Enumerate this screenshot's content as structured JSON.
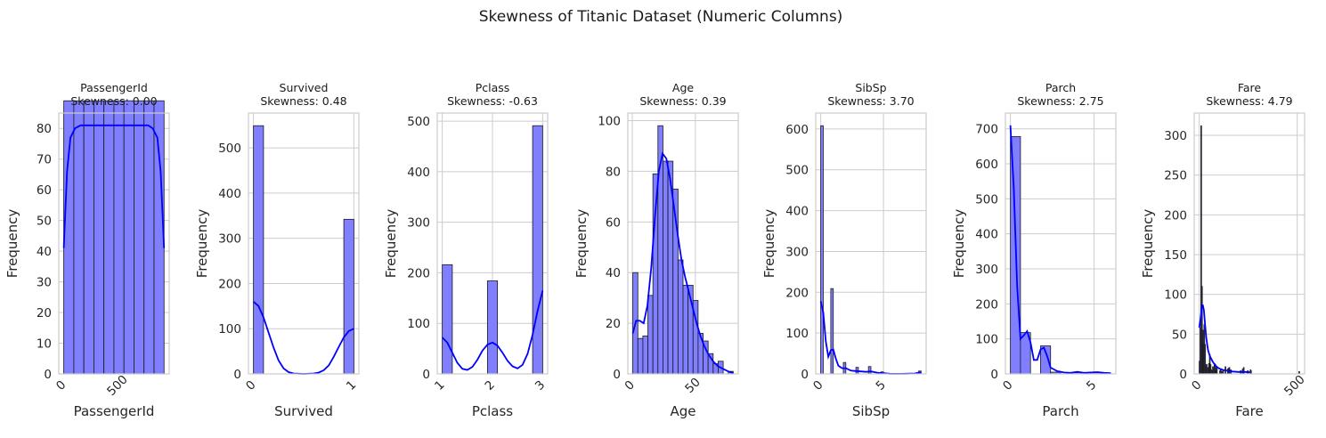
{
  "figure": {
    "suptitle": "Skewness of Titanic Dataset (Numeric Columns)",
    "colors": {
      "bar_fill": "#7f7fff",
      "bar_edge": "#1a1a1a",
      "kde": "#0000ff",
      "grid": "#cccccc",
      "spine": "#cccccc"
    }
  },
  "chart_data": [
    {
      "type": "histogram",
      "title": "PassengerId",
      "subtitle": "Skewness: 0.00",
      "xlabel": "PassengerId",
      "ylabel": "Frequency",
      "xlim": [
        -43.5,
        936.5
      ],
      "ylim": [
        0,
        85
      ],
      "xticks": [
        0,
        500
      ],
      "yticks": [
        0,
        10,
        20,
        30,
        40,
        50,
        60,
        70,
        80
      ],
      "bins": [
        [
          1,
          90,
          89
        ],
        [
          90,
          179,
          89
        ],
        [
          179,
          268,
          89
        ],
        [
          268,
          357,
          89
        ],
        [
          357,
          446,
          89
        ],
        [
          446,
          535,
          89
        ],
        [
          535,
          624,
          89
        ],
        [
          624,
          713,
          89
        ],
        [
          713,
          802,
          89
        ],
        [
          802,
          891,
          89
        ]
      ],
      "kde": [
        [
          1,
          41
        ],
        [
          30,
          66
        ],
        [
          60,
          77
        ],
        [
          100,
          80
        ],
        [
          150,
          81
        ],
        [
          300,
          81
        ],
        [
          450,
          81
        ],
        [
          600,
          81
        ],
        [
          750,
          81
        ],
        [
          790,
          80
        ],
        [
          831,
          77
        ],
        [
          861,
          66
        ],
        [
          891,
          41
        ]
      ]
    },
    {
      "type": "histogram",
      "title": "Survived",
      "subtitle": "Skewness: 0.48",
      "xlabel": "Survived",
      "ylabel": "Frequency",
      "xlim": [
        -0.05,
        1.05
      ],
      "ylim": [
        0,
        577
      ],
      "xticks": [
        0,
        1
      ],
      "yticks": [
        0,
        100,
        200,
        300,
        400,
        500
      ],
      "bins": [
        [
          0,
          0.1,
          549
        ],
        [
          0.9,
          1.0,
          342
        ]
      ],
      "kde": [
        [
          0,
          160
        ],
        [
          0.05,
          150
        ],
        [
          0.1,
          125
        ],
        [
          0.15,
          92
        ],
        [
          0.2,
          58
        ],
        [
          0.25,
          30
        ],
        [
          0.3,
          12
        ],
        [
          0.35,
          4
        ],
        [
          0.4,
          1
        ],
        [
          0.5,
          0
        ],
        [
          0.6,
          1
        ],
        [
          0.65,
          3
        ],
        [
          0.7,
          8
        ],
        [
          0.75,
          19
        ],
        [
          0.8,
          38
        ],
        [
          0.85,
          60
        ],
        [
          0.9,
          81
        ],
        [
          0.95,
          95
        ],
        [
          1.0,
          100
        ]
      ]
    },
    {
      "type": "histogram",
      "title": "Pclass",
      "subtitle": "Skewness: -0.63",
      "xlabel": "Pclass",
      "ylabel": "Frequency",
      "xlim": [
        0.9,
        3.1
      ],
      "ylim": [
        0,
        516
      ],
      "xticks": [
        1,
        2,
        3
      ],
      "yticks": [
        0,
        100,
        200,
        300,
        400,
        500
      ],
      "bins": [
        [
          1,
          1.2,
          216
        ],
        [
          1.9,
          2.1,
          184
        ],
        [
          2.8,
          3.0,
          491
        ]
      ],
      "kde": [
        [
          1,
          72
        ],
        [
          1.1,
          62
        ],
        [
          1.2,
          42
        ],
        [
          1.3,
          22
        ],
        [
          1.4,
          10
        ],
        [
          1.5,
          8
        ],
        [
          1.6,
          14
        ],
        [
          1.7,
          28
        ],
        [
          1.8,
          46
        ],
        [
          1.9,
          58
        ],
        [
          2.0,
          62
        ],
        [
          2.1,
          56
        ],
        [
          2.2,
          42
        ],
        [
          2.3,
          26
        ],
        [
          2.4,
          15
        ],
        [
          2.5,
          11
        ],
        [
          2.6,
          18
        ],
        [
          2.7,
          40
        ],
        [
          2.8,
          78
        ],
        [
          2.9,
          125
        ],
        [
          3.0,
          165
        ]
      ]
    },
    {
      "type": "histogram",
      "title": "Age",
      "subtitle": "Skewness: 0.39",
      "xlabel": "Age",
      "ylabel": "Frequency",
      "xlim": [
        -3.55,
        83.97
      ],
      "ylim": [
        0,
        103
      ],
      "xticks": [
        0,
        50
      ],
      "yticks": [
        0,
        20,
        40,
        60,
        80,
        100
      ],
      "bins": [
        [
          0.42,
          4.4,
          40
        ],
        [
          4.4,
          8.38,
          14
        ],
        [
          8.38,
          12.36,
          15
        ],
        [
          12.36,
          16.33,
          31
        ],
        [
          16.33,
          20.31,
          79
        ],
        [
          20.31,
          24.29,
          98
        ],
        [
          24.29,
          28.27,
          84
        ],
        [
          28.27,
          32.25,
          84
        ],
        [
          32.25,
          36.23,
          73
        ],
        [
          36.23,
          40.21,
          45
        ],
        [
          40.21,
          44.19,
          35
        ],
        [
          44.19,
          48.16,
          35
        ],
        [
          48.16,
          52.14,
          29
        ],
        [
          52.14,
          56.12,
          16
        ],
        [
          56.12,
          60.1,
          13
        ],
        [
          60.1,
          64.08,
          8
        ],
        [
          64.08,
          68.06,
          4
        ],
        [
          68.06,
          72.04,
          5
        ],
        [
          72.04,
          76.02,
          0
        ],
        [
          76.02,
          80.0,
          1
        ]
      ],
      "kde": [
        [
          0.42,
          16
        ],
        [
          3,
          21
        ],
        [
          6,
          21
        ],
        [
          9,
          20
        ],
        [
          12,
          27
        ],
        [
          15,
          42
        ],
        [
          18,
          62
        ],
        [
          21,
          80
        ],
        [
          24,
          87
        ],
        [
          27,
          85
        ],
        [
          30,
          77
        ],
        [
          33,
          66
        ],
        [
          36,
          55
        ],
        [
          39,
          45
        ],
        [
          42,
          38
        ],
        [
          45,
          32
        ],
        [
          48,
          26
        ],
        [
          51,
          20
        ],
        [
          54,
          15
        ],
        [
          57,
          11
        ],
        [
          60,
          8
        ],
        [
          64,
          5
        ],
        [
          68,
          3
        ],
        [
          72,
          2
        ],
        [
          76,
          1
        ],
        [
          80,
          0.3
        ]
      ]
    },
    {
      "type": "histogram",
      "title": "SibSp",
      "subtitle": "Skewness: 3.70",
      "xlabel": "SibSp",
      "ylabel": "Frequency",
      "xlim": [
        -0.4,
        8.4
      ],
      "ylim": [
        0,
        639
      ],
      "xticks": [
        0,
        5
      ],
      "yticks": [
        0,
        100,
        200,
        300,
        400,
        500,
        600
      ],
      "bins": [
        [
          0,
          0.2,
          608
        ],
        [
          0.8,
          1.0,
          209
        ],
        [
          1.8,
          2.0,
          28
        ],
        [
          2.8,
          3.0,
          16
        ],
        [
          3.8,
          4.0,
          18
        ],
        [
          4.8,
          5.0,
          5
        ],
        [
          7.8,
          8.0,
          7
        ]
      ],
      "kde": [
        [
          0,
          178
        ],
        [
          0.2,
          150
        ],
        [
          0.4,
          80
        ],
        [
          0.6,
          42
        ],
        [
          0.8,
          58
        ],
        [
          1.0,
          60
        ],
        [
          1.2,
          38
        ],
        [
          1.4,
          20
        ],
        [
          1.7,
          14
        ],
        [
          2.0,
          14
        ],
        [
          2.4,
          8
        ],
        [
          2.8,
          7
        ],
        [
          3.2,
          6
        ],
        [
          3.6,
          5
        ],
        [
          4.0,
          6
        ],
        [
          4.5,
          3
        ],
        [
          5.0,
          2
        ],
        [
          5.5,
          0.5
        ],
        [
          6.5,
          0.2
        ],
        [
          7.5,
          1
        ],
        [
          7.8,
          3
        ],
        [
          8.0,
          4
        ]
      ]
    },
    {
      "type": "histogram",
      "title": "Parch",
      "subtitle": "Skewness: 2.75",
      "xlabel": "Parch",
      "ylabel": "Frequency",
      "xlim": [
        -0.3,
        6.3
      ],
      "ylim": [
        0,
        745
      ],
      "xticks": [
        0,
        5
      ],
      "yticks": [
        0,
        100,
        200,
        300,
        400,
        500,
        600,
        700
      ],
      "bins": [
        [
          0,
          0.6,
          678
        ],
        [
          0.6,
          1.2,
          118
        ],
        [
          1.8,
          2.4,
          80
        ],
        [
          2.4,
          3.0,
          5
        ],
        [
          3.6,
          4.2,
          4
        ],
        [
          4.8,
          5.4,
          5
        ],
        [
          5.4,
          6.0,
          1
        ]
      ],
      "kde": [
        [
          0,
          710
        ],
        [
          0.2,
          530
        ],
        [
          0.4,
          250
        ],
        [
          0.6,
          100
        ],
        [
          0.8,
          110
        ],
        [
          1.0,
          122
        ],
        [
          1.2,
          90
        ],
        [
          1.4,
          40
        ],
        [
          1.6,
          40
        ],
        [
          1.8,
          70
        ],
        [
          2.0,
          75
        ],
        [
          2.2,
          50
        ],
        [
          2.4,
          18
        ],
        [
          2.8,
          8
        ],
        [
          3.2,
          4
        ],
        [
          3.6,
          3
        ],
        [
          4.0,
          6
        ],
        [
          4.4,
          3
        ],
        [
          4.8,
          4
        ],
        [
          5.2,
          5
        ],
        [
          5.6,
          3
        ],
        [
          6.0,
          2
        ]
      ]
    },
    {
      "type": "histogram",
      "title": "Fare",
      "subtitle": "Skewness: 4.79",
      "xlabel": "Fare",
      "ylabel": "Frequency",
      "xlim": [
        -25.6,
        537.9
      ],
      "ylim": [
        0,
        328
      ],
      "xticks": [
        0,
        500
      ],
      "yticks": [
        0,
        50,
        100,
        150,
        200,
        250,
        300
      ],
      "bins": [
        [
          0,
          4,
          16
        ],
        [
          4,
          8,
          58
        ],
        [
          8,
          12,
          312
        ],
        [
          12,
          16,
          110
        ],
        [
          16,
          20,
          55
        ],
        [
          20,
          24,
          38
        ],
        [
          24,
          28,
          62
        ],
        [
          28,
          32,
          37
        ],
        [
          32,
          36,
          10
        ],
        [
          36,
          40,
          12
        ],
        [
          40,
          44,
          6
        ],
        [
          44,
          48,
          8
        ],
        [
          48,
          52,
          13
        ],
        [
          52,
          56,
          24
        ],
        [
          56,
          60,
          12
        ],
        [
          60,
          64,
          5
        ],
        [
          64,
          68,
          4
        ],
        [
          68,
          72,
          9
        ],
        [
          72,
          76,
          6
        ],
        [
          76,
          80,
          13
        ],
        [
          80,
          84,
          12
        ],
        [
          84,
          88,
          4
        ],
        [
          88,
          92,
          8
        ],
        [
          104,
          108,
          4
        ],
        [
          108,
          112,
          6
        ],
        [
          112,
          116,
          3
        ],
        [
          120,
          124,
          4
        ],
        [
          132,
          136,
          9
        ],
        [
          144,
          148,
          6
        ],
        [
          148,
          152,
          7
        ],
        [
          152,
          156,
          8
        ],
        [
          160,
          164,
          5
        ],
        [
          210,
          214,
          4
        ],
        [
          220,
          224,
          6
        ],
        [
          225,
          229,
          8
        ],
        [
          246,
          250,
          4
        ],
        [
          260,
          264,
          5
        ],
        [
          262,
          266,
          4
        ],
        [
          508,
          512,
          3
        ]
      ],
      "kde": [
        [
          0,
          58
        ],
        [
          6,
          68
        ],
        [
          12,
          82
        ],
        [
          18,
          87
        ],
        [
          24,
          80
        ],
        [
          30,
          62
        ],
        [
          36,
          45
        ],
        [
          45,
          30
        ],
        [
          55,
          22
        ],
        [
          70,
          15
        ],
        [
          85,
          10
        ],
        [
          100,
          7
        ],
        [
          120,
          5
        ],
        [
          145,
          4
        ],
        [
          170,
          3
        ],
        [
          200,
          2.5
        ],
        [
          230,
          2.5
        ],
        [
          260,
          2
        ]
      ]
    }
  ]
}
